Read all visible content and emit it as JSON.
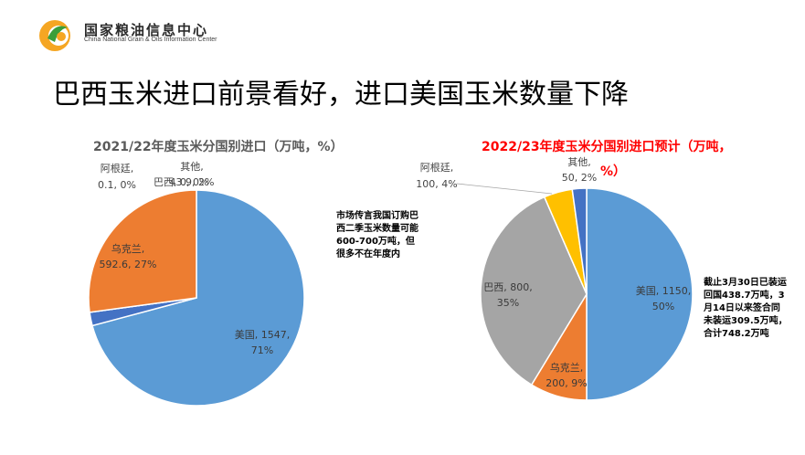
{
  "header": {
    "logo_cn": "国家粮油信息中心",
    "logo_en": "China National Grain & Oils Information Center",
    "title": "巴西玉米进口前景看好，进口美国玉米数量下降"
  },
  "colors": {
    "usa": "#5b9bd5",
    "ukraine": "#ed7d31",
    "brazil": "#a5a5a5",
    "argentina": "#ffc000",
    "other": "#4472c4"
  },
  "notes": {
    "left": "市场传言我国订购巴西二季玉米数量可能600-700万吨，但很多不在年度内",
    "right": "截止3月30日已装运回国438.7万吨，3月14日以来签合同未装运309.5万吨，合计748.2万吨"
  },
  "chart_data": [
    {
      "type": "pie",
      "title": "2021/22年度玉米分国别进口（万吨，%）",
      "slices": [
        {
          "key": "usa",
          "name": "美国",
          "value": 1547,
          "pct": "71%",
          "label": "美国, 1547,",
          "label2": "71%"
        },
        {
          "key": "other",
          "name": "其他",
          "value": 43.9,
          "pct": "2%",
          "label": "其他,",
          "label2": "43.9, 2%"
        },
        {
          "key": "argentina",
          "name": "阿根廷",
          "value": 0.1,
          "pct": "0%",
          "label": "阿根廷,",
          "label2": "0.1, 0%"
        },
        {
          "key": "brazil",
          "name": "巴西",
          "value": 0,
          "pct": "0%",
          "label": "巴西, 0, 0%",
          "label2": ""
        },
        {
          "key": "ukraine",
          "name": "乌克兰",
          "value": 592.6,
          "pct": "27%",
          "label": "乌克兰,",
          "label2": "592.6, 27%"
        }
      ]
    },
    {
      "type": "pie",
      "title": "2022/23年度玉米分国别进口预计（万吨，%）",
      "title_line1": "2022/23年度玉米分国别进口预计（万吨，",
      "title_line2": "%）",
      "slices": [
        {
          "key": "usa",
          "name": "美国",
          "value": 1150,
          "pct": "50%",
          "label": "美国, 1150,",
          "label2": "50%"
        },
        {
          "key": "ukraine",
          "name": "乌克兰",
          "value": 200,
          "pct": "9%",
          "label": "乌克兰,",
          "label2": "200, 9%"
        },
        {
          "key": "brazil",
          "name": "巴西",
          "value": 800,
          "pct": "35%",
          "label": "巴西, 800,",
          "label2": "35%"
        },
        {
          "key": "argentina",
          "name": "阿根廷",
          "value": 100,
          "pct": "4%",
          "label": "阿根廷,",
          "label2": "100, 4%"
        },
        {
          "key": "other",
          "name": "其他",
          "value": 50,
          "pct": "2%",
          "label": "其他,",
          "label2": "50, 2%"
        }
      ]
    }
  ]
}
